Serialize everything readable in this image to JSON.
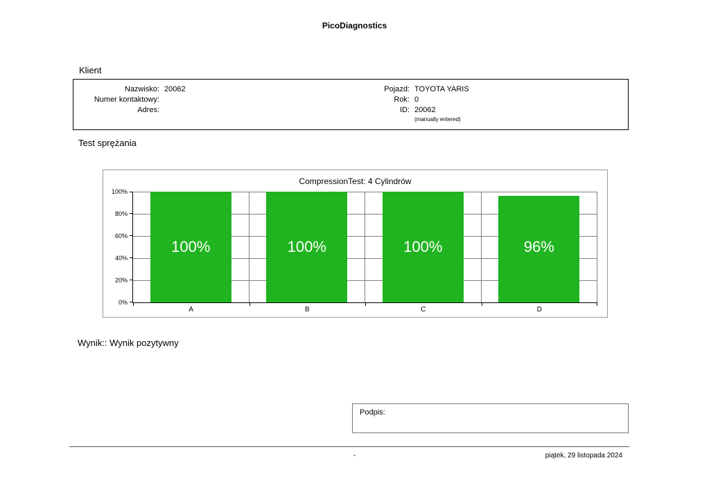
{
  "header": {
    "title": "PicoDiagnostics"
  },
  "client": {
    "section_label": "Klient",
    "left": [
      {
        "label": "Nazwisko:",
        "value": "20062"
      },
      {
        "label": "Numer kontaktowy:",
        "value": ""
      },
      {
        "label": "Adres:",
        "value": ""
      }
    ],
    "right": [
      {
        "label": "Pojazd:",
        "value": "TOYOTA YARIS"
      },
      {
        "label": "Rok:",
        "value": "0"
      },
      {
        "label": "ID:",
        "value": "20062"
      }
    ],
    "note": "(manually entered)"
  },
  "test": {
    "section_label": "Test sprężania"
  },
  "chart_data": {
    "type": "bar",
    "title": "CompressionTest: 4 Cylindrów",
    "categories": [
      "A",
      "B",
      "C",
      "D"
    ],
    "values": [
      100,
      100,
      100,
      96
    ],
    "bar_labels": [
      "100%",
      "100%",
      "100%",
      "96%"
    ],
    "y_ticks": [
      "100%",
      "80%",
      "60%",
      "40%",
      "20%",
      "0%"
    ],
    "ylim": [
      0,
      100
    ],
    "bar_color": "#21b421",
    "grid": true,
    "legend": "none"
  },
  "result": {
    "label": "Wynik::",
    "value": "Wynik pozytywny"
  },
  "signature": {
    "label": "Podpis:"
  },
  "footer": {
    "center": "-",
    "date": "piątek, 29 listopada 2024"
  }
}
